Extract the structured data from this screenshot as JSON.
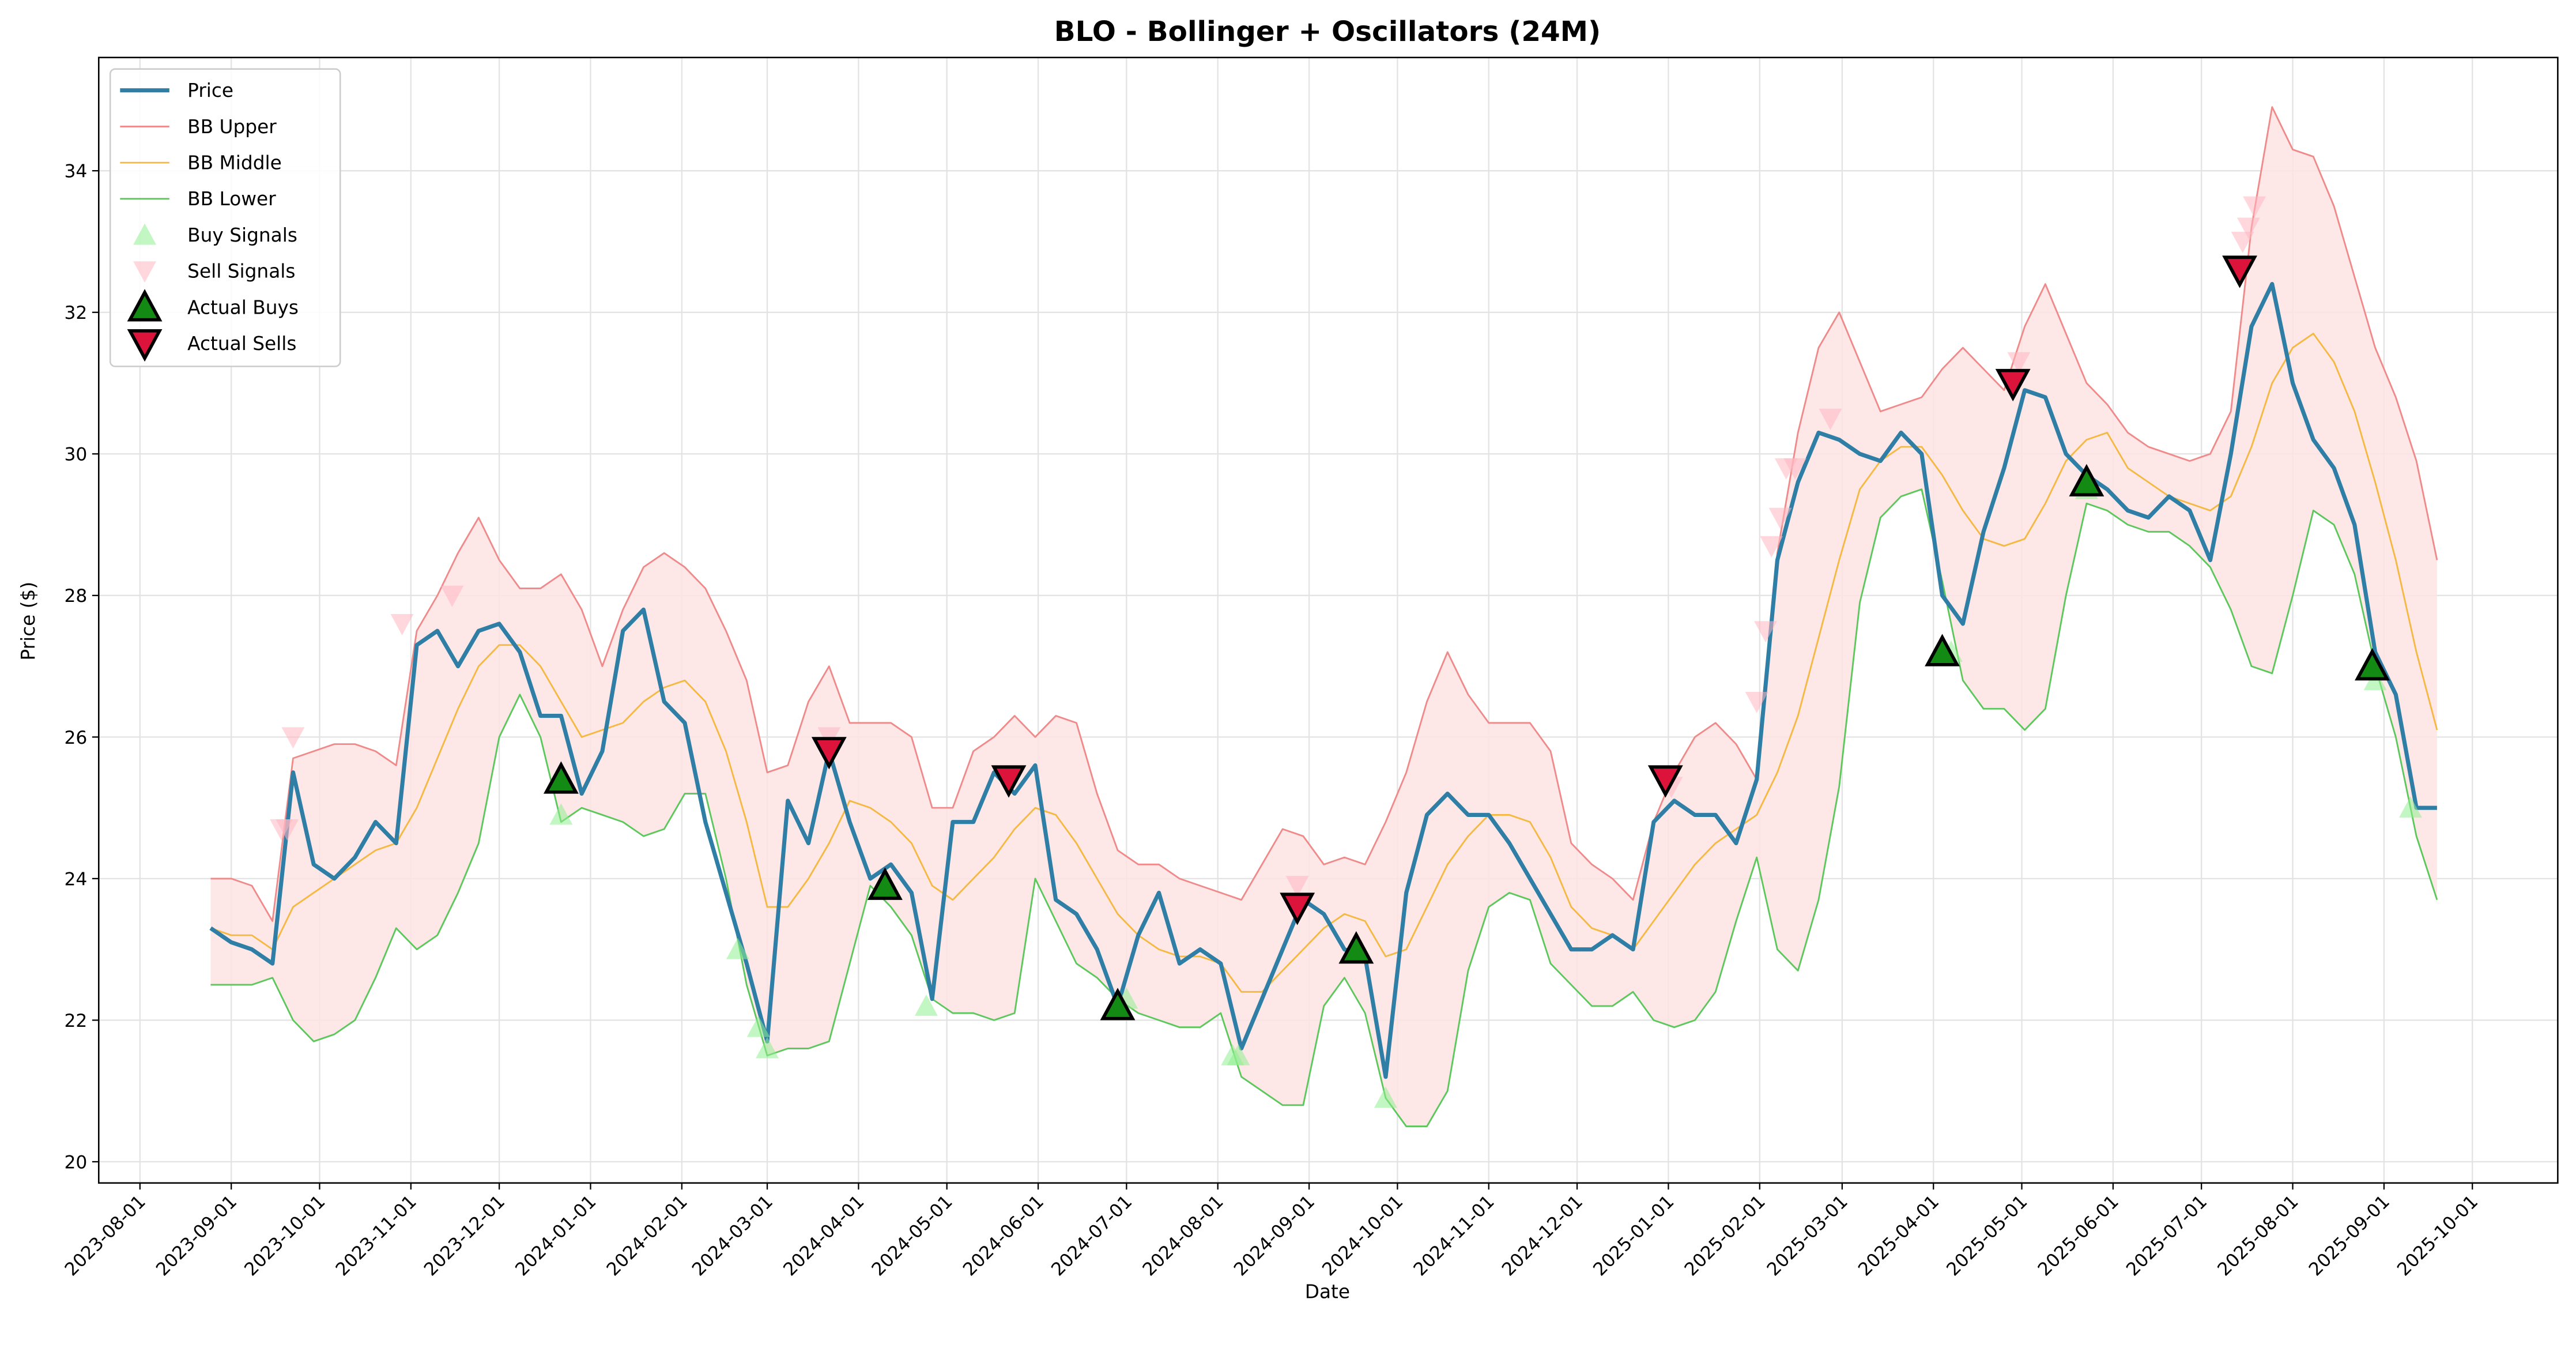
{
  "chart_data": {
    "type": "line",
    "title": "BLO - Bollinger + Oscillators (24M)",
    "xlabel": "Date",
    "ylabel": "Price ($)",
    "xlim": [
      "2023-07-18",
      "2025-10-30"
    ],
    "ylim": [
      19.7,
      35.6
    ],
    "xticks": [
      "2023-08-01",
      "2023-09-01",
      "2023-10-01",
      "2023-11-01",
      "2023-12-01",
      "2024-01-01",
      "2024-02-01",
      "2024-03-01",
      "2024-04-01",
      "2024-05-01",
      "2024-06-01",
      "2024-07-01",
      "2024-08-01",
      "2024-09-01",
      "2024-10-01",
      "2024-11-01",
      "2024-12-01",
      "2025-01-01",
      "2025-02-01",
      "2025-03-01",
      "2025-04-01",
      "2025-05-01",
      "2025-06-01",
      "2025-07-01",
      "2025-08-01",
      "2025-09-01",
      "2025-10-01"
    ],
    "yticks": [
      20,
      22,
      24,
      26,
      28,
      30,
      32,
      34
    ],
    "grid": true,
    "legend": "upper left",
    "band_fill": "#fde3e3",
    "x": [
      "2023-08-25",
      "2023-09-01",
      "2023-09-08",
      "2023-09-15",
      "2023-09-22",
      "2023-09-29",
      "2023-10-06",
      "2023-10-13",
      "2023-10-20",
      "2023-10-27",
      "2023-11-03",
      "2023-11-10",
      "2023-11-17",
      "2023-11-24",
      "2023-12-01",
      "2023-12-08",
      "2023-12-15",
      "2023-12-22",
      "2023-12-29",
      "2024-01-05",
      "2024-01-12",
      "2024-01-19",
      "2024-01-26",
      "2024-02-02",
      "2024-02-09",
      "2024-02-16",
      "2024-02-23",
      "2024-03-01",
      "2024-03-08",
      "2024-03-15",
      "2024-03-22",
      "2024-03-29",
      "2024-04-05",
      "2024-04-12",
      "2024-04-19",
      "2024-04-26",
      "2024-05-03",
      "2024-05-10",
      "2024-05-17",
      "2024-05-24",
      "2024-05-31",
      "2024-06-07",
      "2024-06-14",
      "2024-06-21",
      "2024-06-28",
      "2024-07-05",
      "2024-07-12",
      "2024-07-19",
      "2024-07-26",
      "2024-08-02",
      "2024-08-09",
      "2024-08-16",
      "2024-08-23",
      "2024-08-30",
      "2024-09-06",
      "2024-09-13",
      "2024-09-20",
      "2024-09-27",
      "2024-10-04",
      "2024-10-11",
      "2024-10-18",
      "2024-10-25",
      "2024-11-01",
      "2024-11-08",
      "2024-11-15",
      "2024-11-22",
      "2024-11-29",
      "2024-12-06",
      "2024-12-13",
      "2024-12-20",
      "2024-12-27",
      "2025-01-03",
      "2025-01-10",
      "2025-01-17",
      "2025-01-24",
      "2025-01-31",
      "2025-02-07",
      "2025-02-14",
      "2025-02-21",
      "2025-02-28",
      "2025-03-07",
      "2025-03-14",
      "2025-03-21",
      "2025-03-28",
      "2025-04-04",
      "2025-04-11",
      "2025-04-18",
      "2025-04-25",
      "2025-05-02",
      "2025-05-09",
      "2025-05-16",
      "2025-05-23",
      "2025-05-30",
      "2025-06-06",
      "2025-06-13",
      "2025-06-20",
      "2025-06-27",
      "2025-07-04",
      "2025-07-11",
      "2025-07-18",
      "2025-07-25",
      "2025-08-01",
      "2025-08-08",
      "2025-08-15",
      "2025-08-22",
      "2025-08-29",
      "2025-09-05",
      "2025-09-12",
      "2025-09-19"
    ],
    "series": [
      {
        "name": "Price",
        "color": "#2e7ea6",
        "width": 2.5,
        "values": [
          23.3,
          23.1,
          23.0,
          22.8,
          25.5,
          24.2,
          24.0,
          24.3,
          24.8,
          24.5,
          27.3,
          27.5,
          27.0,
          27.5,
          27.6,
          27.2,
          26.3,
          26.3,
          25.2,
          25.8,
          27.5,
          27.8,
          26.5,
          26.2,
          24.8,
          23.8,
          22.8,
          21.7,
          25.1,
          24.5,
          25.8,
          24.8,
          24.0,
          24.2,
          23.8,
          22.3,
          24.8,
          24.8,
          25.5,
          25.2,
          25.6,
          23.7,
          23.5,
          23.0,
          22.2,
          23.2,
          23.8,
          22.8,
          23.0,
          22.8,
          21.6,
          22.3,
          23.0,
          23.7,
          23.5,
          23.0,
          22.9,
          21.2,
          23.8,
          24.9,
          25.2,
          24.9,
          24.9,
          24.5,
          24.0,
          23.5,
          23.0,
          23.0,
          23.2,
          23.0,
          24.8,
          25.1,
          24.9,
          24.9,
          24.5,
          25.4,
          28.5,
          29.6,
          30.3,
          30.2,
          30.0,
          29.9,
          30.3,
          30.0,
          28.0,
          27.6,
          28.9,
          29.8,
          30.9,
          30.8,
          30.0,
          29.7,
          29.5,
          29.2,
          29.1,
          29.4,
          29.2,
          28.5,
          30.0,
          31.8,
          32.4,
          31.0,
          30.2,
          29.8,
          29.0,
          27.2,
          26.6,
          25.0,
          25.0
        ]
      },
      {
        "name": "BB Upper",
        "color": "#f08a8a",
        "width": 1,
        "values": [
          24.0,
          24.0,
          23.9,
          23.4,
          25.7,
          25.8,
          25.9,
          25.9,
          25.8,
          25.6,
          27.5,
          28.0,
          28.6,
          29.1,
          28.5,
          28.1,
          28.1,
          28.3,
          27.8,
          27.0,
          27.8,
          28.4,
          28.6,
          28.4,
          28.1,
          27.5,
          26.8,
          25.5,
          25.6,
          26.5,
          27.0,
          26.2,
          26.2,
          26.2,
          26.0,
          25.0,
          25.0,
          25.8,
          26.0,
          26.3,
          26.0,
          26.3,
          26.2,
          25.2,
          24.4,
          24.2,
          24.2,
          24.0,
          23.9,
          23.8,
          23.7,
          24.2,
          24.7,
          24.6,
          24.2,
          24.3,
          24.2,
          24.8,
          25.5,
          26.5,
          27.2,
          26.6,
          26.2,
          26.2,
          26.2,
          25.8,
          24.5,
          24.2,
          24.0,
          23.7,
          24.8,
          25.5,
          26.0,
          26.2,
          25.9,
          25.4,
          28.6,
          30.3,
          31.5,
          32.0,
          31.3,
          30.6,
          30.7,
          30.8,
          31.2,
          31.5,
          31.2,
          30.9,
          31.8,
          32.4,
          31.7,
          31.0,
          30.7,
          30.3,
          30.1,
          30.0,
          29.9,
          30.0,
          30.6,
          33.2,
          34.9,
          34.3,
          34.2,
          33.5,
          32.5,
          31.5,
          30.8,
          29.9,
          28.5
        ]
      },
      {
        "name": "BB Middle",
        "color": "#f5b942",
        "width": 1,
        "values": [
          23.3,
          23.2,
          23.2,
          23.0,
          23.6,
          23.8,
          24.0,
          24.2,
          24.4,
          24.5,
          25.0,
          25.7,
          26.4,
          27.0,
          27.3,
          27.3,
          27.0,
          26.5,
          26.0,
          26.1,
          26.2,
          26.5,
          26.7,
          26.8,
          26.5,
          25.8,
          24.8,
          23.6,
          23.6,
          24.0,
          24.5,
          25.1,
          25.0,
          24.8,
          24.5,
          23.9,
          23.7,
          24.0,
          24.3,
          24.7,
          25.0,
          24.9,
          24.5,
          24.0,
          23.5,
          23.2,
          23.0,
          22.9,
          22.9,
          22.8,
          22.4,
          22.4,
          22.7,
          23.0,
          23.3,
          23.5,
          23.4,
          22.9,
          23.0,
          23.6,
          24.2,
          24.6,
          24.9,
          24.9,
          24.8,
          24.3,
          23.6,
          23.3,
          23.2,
          23.0,
          23.4,
          23.8,
          24.2,
          24.5,
          24.7,
          24.9,
          25.5,
          26.3,
          27.4,
          28.5,
          29.5,
          29.9,
          30.1,
          30.1,
          29.7,
          29.2,
          28.8,
          28.7,
          28.8,
          29.3,
          29.9,
          30.2,
          30.3,
          29.8,
          29.6,
          29.4,
          29.3,
          29.2,
          29.4,
          30.1,
          31.0,
          31.5,
          31.7,
          31.3,
          30.6,
          29.6,
          28.5,
          27.2,
          26.1
        ]
      },
      {
        "name": "BB Lower",
        "color": "#5cc85c",
        "width": 1,
        "values": [
          22.5,
          22.5,
          22.5,
          22.6,
          22.0,
          21.7,
          21.8,
          22.0,
          22.6,
          23.3,
          23.0,
          23.2,
          23.8,
          24.5,
          26.0,
          26.6,
          26.0,
          24.8,
          25.0,
          24.9,
          24.8,
          24.6,
          24.7,
          25.2,
          25.2,
          24.0,
          22.5,
          21.5,
          21.6,
          21.6,
          21.7,
          22.8,
          23.9,
          23.6,
          23.2,
          22.3,
          22.1,
          22.1,
          22.0,
          22.1,
          24.0,
          23.4,
          22.8,
          22.6,
          22.3,
          22.1,
          22.0,
          21.9,
          21.9,
          22.1,
          21.2,
          21.0,
          20.8,
          20.8,
          22.2,
          22.6,
          22.1,
          20.9,
          20.5,
          20.5,
          21.0,
          22.7,
          23.6,
          23.8,
          23.7,
          22.8,
          22.5,
          22.2,
          22.2,
          22.4,
          22.0,
          21.9,
          22.0,
          22.4,
          23.4,
          24.3,
          23.0,
          22.7,
          23.7,
          25.3,
          27.9,
          29.1,
          29.4,
          29.5,
          28.2,
          26.8,
          26.4,
          26.4,
          26.1,
          26.4,
          28.0,
          29.3,
          29.2,
          29.0,
          28.9,
          28.9,
          28.7,
          28.4,
          27.8,
          27.0,
          26.9,
          28.0,
          29.2,
          29.0,
          28.3,
          27.0,
          26.0,
          24.6,
          23.7
        ]
      }
    ],
    "signals": [
      {
        "name": "Buy Signals",
        "marker": "up",
        "size": 7,
        "color": "#90ee90",
        "opacity": 0.55,
        "edge": "none",
        "x": [
          "2023-12-22",
          "2024-02-20",
          "2024-02-27",
          "2024-03-01",
          "2024-04-24",
          "2024-07-01",
          "2024-08-06",
          "2024-08-08",
          "2024-09-27",
          "2025-04-07",
          "2025-05-23",
          "2025-08-29",
          "2025-09-10"
        ],
        "values": [
          24.9,
          23.0,
          21.9,
          21.6,
          22.2,
          22.3,
          21.5,
          21.5,
          20.9,
          27.2,
          29.5,
          26.8,
          25.0
        ]
      },
      {
        "name": "Sell Signals",
        "marker": "down",
        "size": 7,
        "color": "#ffb6c1",
        "opacity": 0.55,
        "edge": "none",
        "x": [
          "2023-09-18",
          "2023-09-20",
          "2023-09-22",
          "2023-10-29",
          "2023-11-15",
          "2024-03-22",
          "2024-05-22",
          "2024-08-28",
          "2025-01-02",
          "2025-01-31",
          "2025-02-03",
          "2025-02-05",
          "2025-02-08",
          "2025-02-10",
          "2025-02-13",
          "2025-02-25",
          "2025-04-30",
          "2025-07-15",
          "2025-07-17",
          "2025-07-19"
        ],
        "values": [
          24.7,
          24.7,
          26.0,
          27.6,
          28.0,
          26.0,
          25.4,
          23.9,
          25.3,
          26.5,
          27.5,
          28.7,
          29.1,
          29.8,
          29.8,
          30.5,
          31.3,
          33.0,
          33.2,
          33.5
        ]
      },
      {
        "name": "Actual Buys",
        "marker": "up",
        "size": 9,
        "color": "#138a13",
        "opacity": 1,
        "edge": "#000000",
        "x": [
          "2023-12-22",
          "2024-04-10",
          "2024-06-28",
          "2024-09-17",
          "2025-04-04",
          "2025-05-23",
          "2025-08-28"
        ],
        "values": [
          25.4,
          23.9,
          22.2,
          23.0,
          27.2,
          29.6,
          27.0
        ]
      },
      {
        "name": "Actual Sells",
        "marker": "down",
        "size": 9,
        "color": "#dc143c",
        "opacity": 1,
        "edge": "#000000",
        "x": [
          "2024-03-22",
          "2024-05-22",
          "2024-08-28",
          "2024-12-31",
          "2025-04-28",
          "2025-07-14"
        ],
        "values": [
          25.8,
          25.4,
          23.6,
          25.4,
          31.0,
          32.6
        ]
      }
    ]
  }
}
